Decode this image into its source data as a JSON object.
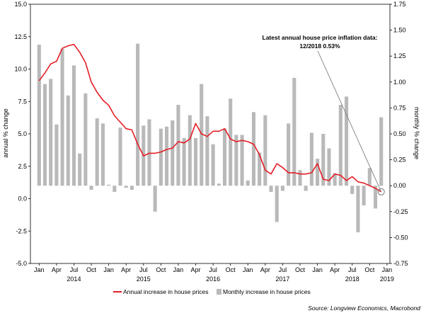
{
  "chart_data": {
    "type": "bar+line",
    "annotation": [
      "Latest annual house price inflation data:",
      "12/2018 0.53%"
    ],
    "source": "Source: Longview Economics, Macrobond",
    "y_left": {
      "label": "annual % change",
      "ylim": [
        -5.0,
        15.0
      ],
      "ticks": [
        "15.0",
        "12.5",
        "10.0",
        "7.5",
        "5.0",
        "2.5",
        "0.0",
        "-2.5",
        "-5.0"
      ]
    },
    "y_right": {
      "label": "monthly % change",
      "ylim": [
        -0.75,
        1.75
      ],
      "ticks": [
        "1.75",
        "1.50",
        "1.25",
        "1.00",
        "0.75",
        "0.50",
        "0.25",
        "0.00",
        "-0.25",
        "-0.50",
        "-0.75"
      ]
    },
    "x_month_ticks": [
      "Jan",
      "Apr",
      "Jul",
      "Oct",
      "Jan",
      "Apr",
      "Jul",
      "Oct",
      "Jan",
      "Apr",
      "Jul",
      "Oct",
      "Jan",
      "Apr",
      "Jul",
      "Oct",
      "Jan",
      "Apr",
      "Jul",
      "Oct",
      "Jan"
    ],
    "x_year_labels": [
      "2014",
      "2015",
      "2016",
      "2017",
      "2018",
      "2019"
    ],
    "months": [
      "2014-01",
      "2014-02",
      "2014-03",
      "2014-04",
      "2014-05",
      "2014-06",
      "2014-07",
      "2014-08",
      "2014-09",
      "2014-10",
      "2014-11",
      "2014-12",
      "2015-01",
      "2015-02",
      "2015-03",
      "2015-04",
      "2015-05",
      "2015-06",
      "2015-07",
      "2015-08",
      "2015-09",
      "2015-10",
      "2015-11",
      "2015-12",
      "2016-01",
      "2016-02",
      "2016-03",
      "2016-04",
      "2016-05",
      "2016-06",
      "2016-07",
      "2016-08",
      "2016-09",
      "2016-10",
      "2016-11",
      "2016-12",
      "2017-01",
      "2017-02",
      "2017-03",
      "2017-04",
      "2017-05",
      "2017-06",
      "2017-07",
      "2017-08",
      "2017-09",
      "2017-10",
      "2017-11",
      "2017-12",
      "2018-01",
      "2018-02",
      "2018-03",
      "2018-04",
      "2018-05",
      "2018-06",
      "2018-07",
      "2018-08",
      "2018-09",
      "2018-10",
      "2018-11",
      "2018-12"
    ],
    "series": [
      {
        "name": "Annual increase in house prices",
        "type": "line",
        "axis": "left",
        "color": "#e41e26",
        "values": [
          9.1,
          9.7,
          10.4,
          10.6,
          11.6,
          11.8,
          11.9,
          11.3,
          10.5,
          9.0,
          8.2,
          7.6,
          7.2,
          6.4,
          5.9,
          5.4,
          5.3,
          4.2,
          3.3,
          3.5,
          3.5,
          3.6,
          3.8,
          3.9,
          4.4,
          4.3,
          4.6,
          5.8,
          5.0,
          4.8,
          5.2,
          5.2,
          5.4,
          4.6,
          4.4,
          4.5,
          4.4,
          4.2,
          3.4,
          2.2,
          1.9,
          2.7,
          2.4,
          2.0,
          2.0,
          1.9,
          1.9,
          2.0,
          2.7,
          1.5,
          1.4,
          1.9,
          1.8,
          1.4,
          1.7,
          1.3,
          1.2,
          1.0,
          0.8,
          0.53
        ]
      },
      {
        "name": "Monthly increase in house prices",
        "type": "bar",
        "axis": "right",
        "color": "#b9b9b9",
        "values": [
          1.36,
          0.98,
          1.03,
          0.59,
          1.32,
          0.87,
          1.16,
          0.31,
          0.89,
          -0.04,
          0.65,
          0.6,
          0.01,
          -0.06,
          0.56,
          -0.02,
          -0.04,
          1.37,
          0.58,
          0.64,
          -0.25,
          0.55,
          0.57,
          0.63,
          0.78,
          0.46,
          0.68,
          0.46,
          0.98,
          0.67,
          0.4,
          0.02,
          0.55,
          0.84,
          0.49,
          0.49,
          0.05,
          0.71,
          0.32,
          0.68,
          -0.06,
          -0.35,
          -0.05,
          0.6,
          1.04,
          0.15,
          -0.05,
          0.51,
          0.26,
          0.5,
          0.36,
          0.12,
          0.78,
          0.86,
          -0.08,
          -0.45,
          -0.19,
          0.17,
          -0.22,
          0.66
        ]
      }
    ]
  }
}
